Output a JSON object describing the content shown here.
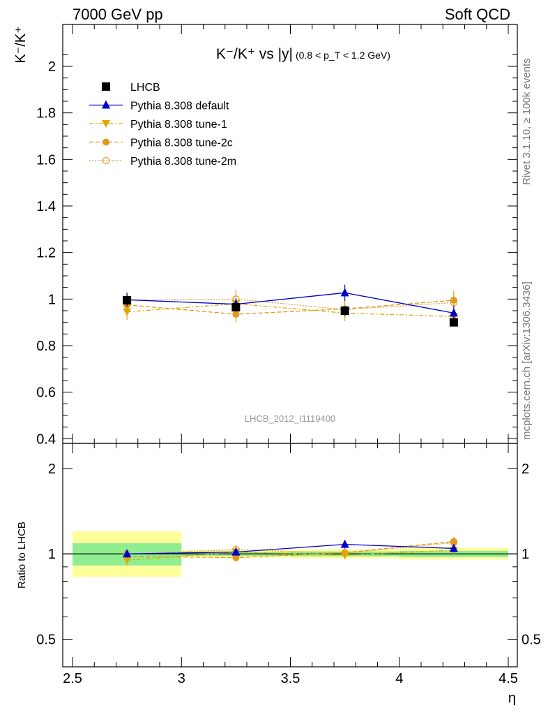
{
  "header": {
    "left": "7000 GeV pp",
    "right": "Soft QCD"
  },
  "side_labels": {
    "rivet": "Rivet 3.1.10, ≥ 100k events",
    "mcplots": "mcplots.cern.ch [arXiv:1306.3436]"
  },
  "watermark": "LHCB_2012_I1119400",
  "chart_data": [
    {
      "type": "line",
      "panel": "main",
      "title": {
        "main": "K⁻/K⁺ vs |y|",
        "sub": "(0.8 < p_T < 1.2 GeV)"
      },
      "ylabel": "K⁻/K⁺",
      "xlabel": "η",
      "xlim": [
        2.5,
        4.5
      ],
      "ylim": [
        0.38,
        2.18
      ],
      "xticks": [
        "2.5",
        "3",
        "3.5",
        "4",
        "4.5"
      ],
      "yticks": [
        "0.4",
        "0.6",
        "0.8",
        "1",
        "1.2",
        "1.4",
        "1.6",
        "1.8",
        "2"
      ],
      "legend_position": "top-left",
      "x": [
        2.75,
        3.25,
        3.75,
        4.25
      ],
      "series": [
        {
          "name": "LHCB",
          "color": "#000000",
          "marker": "square",
          "values": [
            0.995,
            0.965,
            0.95,
            0.9
          ],
          "err": [
            0.02,
            0.015,
            0.02,
            0.015
          ],
          "line": "none"
        },
        {
          "name": "Pythia 8.308 default",
          "color": "#0000cc",
          "marker": "triangle-up",
          "values": [
            0.997,
            0.978,
            1.027,
            0.94
          ],
          "err": [
            0.03,
            0.025,
            0.035,
            0.03
          ],
          "line": "solid"
        },
        {
          "name": "Pythia 8.308 tune-1",
          "color": "#e0a800",
          "marker": "triangle-down",
          "values": [
            0.945,
            0.98,
            0.94,
            0.925
          ],
          "err": [
            0.035,
            0.03,
            0.035,
            0.03
          ],
          "line": "dashdot"
        },
        {
          "name": "Pythia 8.308 tune-2c",
          "color": "#e09a1a",
          "marker": "circle",
          "values": [
            0.975,
            0.935,
            0.958,
            0.995
          ],
          "err": [
            0.035,
            0.035,
            0.035,
            0.04
          ],
          "line": "dashed"
        },
        {
          "name": "Pythia 8.308 tune-2m",
          "color": "#e0a040",
          "marker": "circle-open",
          "values": [
            0.995,
            1.0,
            0.955,
            0.985
          ],
          "err": [
            0.035,
            0.04,
            0.035,
            0.04
          ],
          "line": "dotted"
        }
      ]
    },
    {
      "type": "line",
      "panel": "ratio",
      "ylabel": "Ratio to LHCB",
      "xlabel": "η",
      "yscale": "log",
      "ylim": [
        0.4,
        2.45
      ],
      "yticks": [
        "0.5",
        "1",
        "2"
      ],
      "x": [
        2.75,
        3.25,
        3.75,
        4.25
      ],
      "bands": {
        "x_edges": [
          2.5,
          3.0,
          3.5,
          4.0,
          4.5
        ],
        "inner": [
          [
            0.91,
            1.09
          ],
          [
            0.985,
            1.015
          ],
          [
            0.98,
            1.02
          ],
          [
            0.975,
            1.025
          ]
        ],
        "outer": [
          [
            0.83,
            1.2
          ],
          [
            0.97,
            1.03
          ],
          [
            0.965,
            1.035
          ],
          [
            0.955,
            1.05
          ]
        ],
        "inner_color": "#90ee90",
        "outer_color": "#ffff99"
      },
      "series": [
        {
          "name": "Pythia 8.308 default",
          "values": [
            1.0,
            1.015,
            1.08,
            1.045
          ],
          "err": [
            0.03,
            0.025,
            0.035,
            0.03
          ]
        },
        {
          "name": "Pythia 8.308 tune-1",
          "values": [
            0.95,
            1.015,
            0.99,
            1.03
          ],
          "err": [
            0.035,
            0.03,
            0.035,
            0.03
          ]
        },
        {
          "name": "Pythia 8.308 tune-2c",
          "values": [
            0.98,
            0.97,
            1.01,
            1.105
          ],
          "err": [
            0.035,
            0.035,
            0.035,
            0.04
          ]
        },
        {
          "name": "Pythia 8.308 tune-2m",
          "values": [
            1.0,
            1.035,
            1.005,
            1.095
          ],
          "err": [
            0.035,
            0.04,
            0.035,
            0.04
          ]
        }
      ]
    }
  ]
}
